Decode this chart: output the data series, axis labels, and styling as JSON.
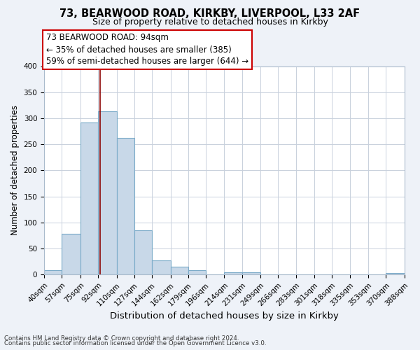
{
  "title1": "73, BEARWOOD ROAD, KIRKBY, LIVERPOOL, L33 2AF",
  "title2": "Size of property relative to detached houses in Kirkby",
  "xlabel": "Distribution of detached houses by size in Kirkby",
  "ylabel": "Number of detached properties",
  "bin_edges": [
    40,
    57,
    75,
    92,
    110,
    127,
    144,
    162,
    179,
    196,
    214,
    231,
    249,
    266,
    283,
    301,
    318,
    335,
    353,
    370,
    388
  ],
  "bin_labels": [
    "40sqm",
    "57sqm",
    "75sqm",
    "92sqm",
    "110sqm",
    "127sqm",
    "144sqm",
    "162sqm",
    "179sqm",
    "196sqm",
    "214sqm",
    "231sqm",
    "249sqm",
    "266sqm",
    "283sqm",
    "301sqm",
    "318sqm",
    "335sqm",
    "353sqm",
    "370sqm",
    "388sqm"
  ],
  "bar_heights": [
    8,
    78,
    292,
    313,
    263,
    85,
    28,
    15,
    8,
    0,
    5,
    5,
    0,
    0,
    0,
    0,
    0,
    0,
    0,
    3
  ],
  "bar_color": "#c8d8e8",
  "bar_edge_color": "#7aaac8",
  "property_size": 94,
  "property_line_color": "#8b0000",
  "annotation_text1": "73 BEARWOOD ROAD: 94sqm",
  "annotation_text2": "← 35% of detached houses are smaller (385)",
  "annotation_text3": "59% of semi-detached houses are larger (644) →",
  "annotation_box_color": "#ffffff",
  "annotation_border_color": "#cc0000",
  "ylim": [
    0,
    400
  ],
  "yticks": [
    0,
    50,
    100,
    150,
    200,
    250,
    300,
    350,
    400
  ],
  "footer1": "Contains HM Land Registry data © Crown copyright and database right 2024.",
  "footer2": "Contains public sector information licensed under the Open Government Licence v3.0.",
  "bg_color": "#eef2f8",
  "plot_bg_color": "#ffffff",
  "grid_color": "#c8d0dc",
  "title1_fontsize": 10.5,
  "title2_fontsize": 9.0,
  "ylabel_fontsize": 8.5,
  "xlabel_fontsize": 9.5,
  "tick_fontsize": 7.5,
  "annotation_fontsize": 8.5,
  "footer_fontsize": 6.2
}
